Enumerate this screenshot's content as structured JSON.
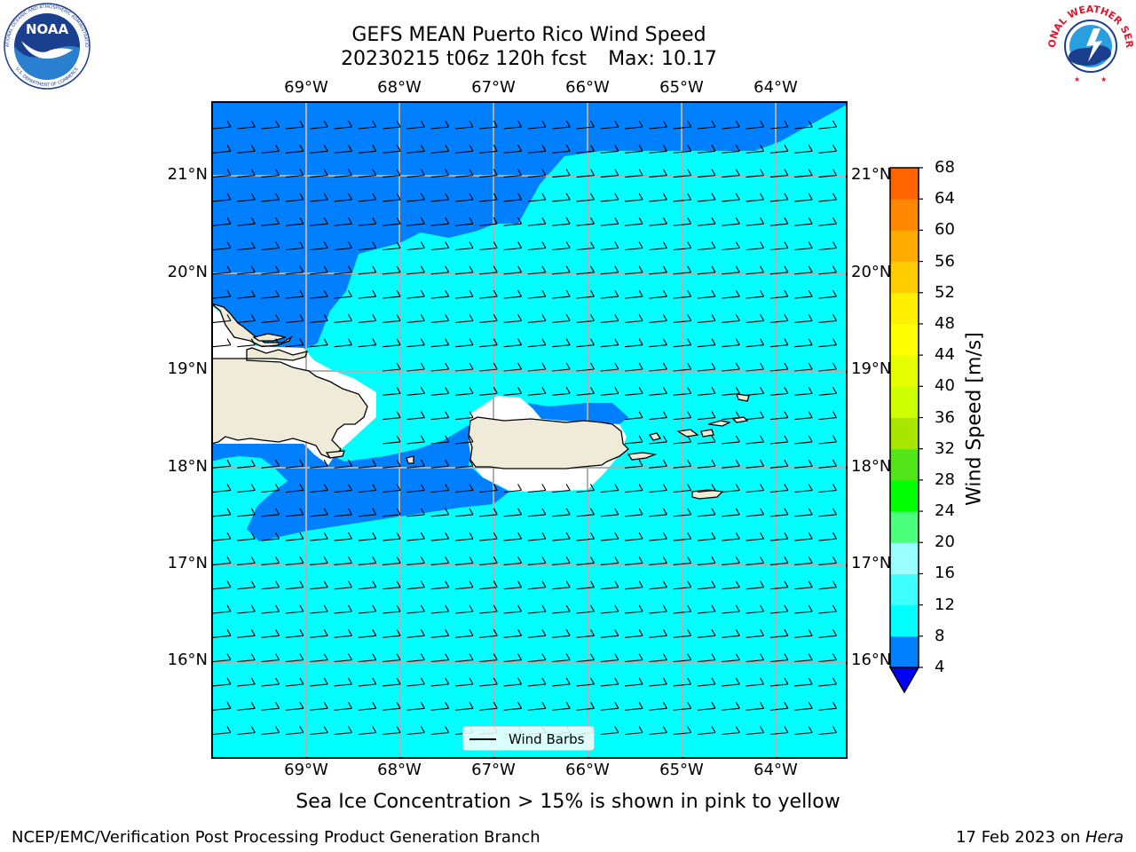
{
  "title": {
    "line1": "GEFS MEAN Puerto Rico Wind Speed",
    "run": "20230215 t06z 120h fcst",
    "max": "Max: 10.17"
  },
  "map": {
    "lon_labels": [
      "69°W",
      "68°W",
      "67°W",
      "66°W",
      "65°W",
      "64°W"
    ],
    "lat_labels": [
      "21°N",
      "20°N",
      "19°N",
      "18°N",
      "17°N",
      "16°N"
    ],
    "extent": {
      "lon_min": -70.0,
      "lon_max": -63.25,
      "lat_min": 15.0,
      "lat_max": 21.75
    },
    "colors": {
      "ocean_low": "#0080ff",
      "ocean_mid": "#00ffff",
      "land": "#efebd8",
      "grid": "#b0b0b0"
    },
    "legend_label": "Wind Barbs"
  },
  "colorbar": {
    "label": "Wind Speed [m/s]",
    "ticks": [
      "68",
      "64",
      "60",
      "56",
      "52",
      "48",
      "44",
      "40",
      "36",
      "32",
      "28",
      "24",
      "20",
      "16",
      "12",
      "8",
      "4"
    ],
    "colors": [
      "#0080ff",
      "#00ffff",
      "#40ffff",
      "#9bffff",
      "#4cff7c",
      "#00ff00",
      "#52e61a",
      "#a8e600",
      "#cdff00",
      "#e6ff00",
      "#ffff00",
      "#ffef00",
      "#ffcc00",
      "#ffab00",
      "#ff8800",
      "#ff6400",
      "#ff3c00",
      "#ff0000"
    ],
    "under_color": "#0000ff"
  },
  "note": "Sea Ice Concentration > 15% is shown in pink to yellow",
  "footer": {
    "left": "NCEP/EMC/Verification Post Processing Product Generation Branch",
    "date": "17 Feb 2023 on ",
    "machine": "Hera"
  },
  "logos": {
    "noaa": "NOAA",
    "nws": "NATIONAL WEATHER SERVICE"
  }
}
